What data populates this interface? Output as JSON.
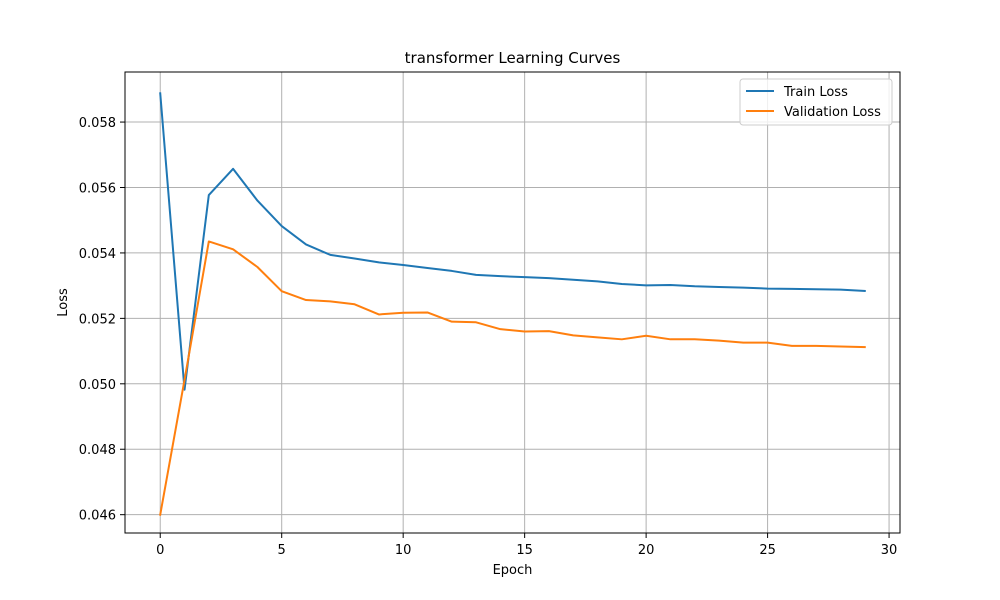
{
  "chart_data": {
    "type": "line",
    "title": "transformer Learning Curves",
    "xlabel": "Epoch",
    "ylabel": "Loss",
    "xlim": [
      -1.45,
      30.45
    ],
    "ylim": [
      0.04544,
      0.05953
    ],
    "x_ticks": [
      0,
      5,
      10,
      15,
      20,
      25,
      30
    ],
    "x_tick_labels": [
      "0",
      "5",
      "10",
      "15",
      "20",
      "25",
      "30"
    ],
    "y_ticks": [
      0.046,
      0.048,
      0.05,
      0.052,
      0.054,
      0.056,
      0.058
    ],
    "y_tick_labels": [
      "0.046",
      "0.048",
      "0.050",
      "0.052",
      "0.054",
      "0.056",
      "0.058"
    ],
    "grid": true,
    "legend_position": "top-right",
    "x": [
      0,
      1,
      2,
      3,
      4,
      5,
      6,
      7,
      8,
      9,
      10,
      11,
      12,
      13,
      14,
      15,
      16,
      17,
      18,
      19,
      20,
      21,
      22,
      23,
      24,
      25,
      26,
      27,
      28,
      29
    ],
    "series": [
      {
        "name": "Train Loss",
        "color": "#1f77b4",
        "values": [
          0.05888,
          0.04982,
          0.05577,
          0.05657,
          0.0556,
          0.05482,
          0.05426,
          0.05394,
          0.05383,
          0.05371,
          0.05363,
          0.05354,
          0.05345,
          0.05333,
          0.05329,
          0.05326,
          0.05323,
          0.05318,
          0.05313,
          0.05305,
          0.05301,
          0.05302,
          0.05298,
          0.05296,
          0.05294,
          0.05291,
          0.0529,
          0.05289,
          0.05288,
          0.05284
        ]
      },
      {
        "name": "Validation Loss",
        "color": "#ff7f0e",
        "values": [
          0.046,
          0.05012,
          0.05435,
          0.05411,
          0.05357,
          0.05283,
          0.05256,
          0.05252,
          0.05243,
          0.05212,
          0.05217,
          0.05218,
          0.0519,
          0.05188,
          0.05167,
          0.0516,
          0.05161,
          0.05148,
          0.05142,
          0.05136,
          0.05147,
          0.05136,
          0.05136,
          0.05132,
          0.05126,
          0.05126,
          0.05116,
          0.05116,
          0.05114,
          0.05112
        ]
      }
    ]
  }
}
